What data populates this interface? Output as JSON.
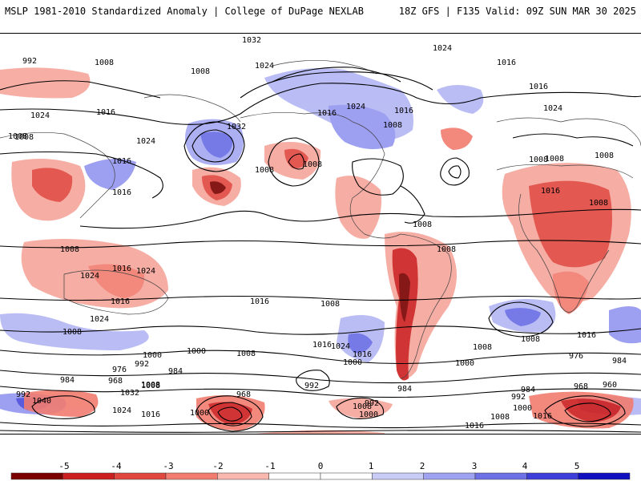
{
  "header": {
    "left_title": "MSLP 1981-2010 Standardized Anomaly | College of DuPage NEXLAB",
    "right_title": "18Z GFS | F135 Valid: 09Z SUN MAR 30 2025"
  },
  "map": {
    "projection": "global equirectangular",
    "field": "MSLP standardized anomaly",
    "contour_field": "MSLP isobars (hPa)",
    "isobar_labels": [
      "992",
      "1008",
      "1016",
      "1024",
      "1032",
      "1024",
      "1008",
      "1016",
      "1024",
      "1024",
      "1008",
      "1016",
      "1032",
      "1008",
      "1016",
      "1024",
      "1016",
      "1008",
      "1016",
      "1024",
      "1016",
      "1024",
      "1008",
      "1016",
      "1008",
      "1008",
      "1008",
      "1008",
      "1008",
      "1016",
      "1024",
      "1008",
      "1016",
      "1024",
      "1008",
      "1016",
      "1024",
      "1016",
      "1008",
      "1008",
      "1016",
      "1024",
      "1008",
      "1000",
      "992",
      "984",
      "976",
      "984",
      "968",
      "1040",
      "1032",
      "1008",
      "1024",
      "992",
      "1016",
      "968",
      "1008",
      "1000",
      "1000",
      "1016",
      "1008",
      "992",
      "1008",
      "992",
      "1000",
      "1000",
      "1016",
      "984",
      "992",
      "1000",
      "1008",
      "1016",
      "976",
      "984",
      "968",
      "960",
      "984",
      "1016",
      "1000",
      "1008",
      "1008"
    ]
  },
  "colorbar": {
    "ticks": [
      "-5",
      "-4",
      "-3",
      "-2",
      "-1",
      "0",
      "1",
      "2",
      "3",
      "4",
      "5"
    ],
    "colors": {
      "neg5": "#7a0000",
      "neg4": "#cc1f1f",
      "neg3": "#e0473f",
      "neg2": "#f27c70",
      "neg1": "#f9b7ad",
      "zero": "#ffffff",
      "pos1": "#c9ccf6",
      "pos2": "#9ea2f0",
      "pos3": "#6e71e6",
      "pos4": "#3e3fd8",
      "pos5": "#1010c0"
    }
  },
  "colors": {
    "positive_anomaly": "#7f7ff0",
    "negative_anomaly": "#e8483f",
    "contour": "#000000"
  }
}
